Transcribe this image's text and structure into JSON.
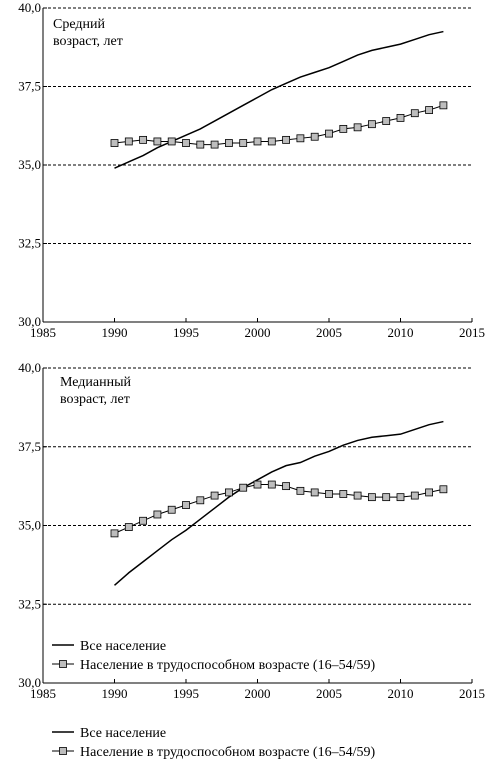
{
  "chart_data": [
    {
      "type": "line",
      "title": "Средний\nвозраст, лет",
      "xlim": [
        1985,
        2015
      ],
      "ylim": [
        30.0,
        40.0
      ],
      "x_ticks": [
        "1985",
        "1990",
        "1995",
        "2000",
        "2005",
        "2010",
        "2015"
      ],
      "y_ticks": [
        "30,0",
        "32,5",
        "35,0",
        "37,5",
        "40,0"
      ],
      "grid": "horizontal-dashed",
      "series": [
        {
          "x": [
            1990,
            1991,
            1992,
            1993,
            1994,
            1995,
            1996,
            1997,
            1998,
            1999,
            2000,
            2001,
            2002,
            2003,
            2004,
            2005,
            2006,
            2007,
            2008,
            2009,
            2010,
            2011,
            2012,
            2013
          ],
          "values": [
            34.9,
            35.1,
            35.3,
            35.55,
            35.75,
            35.95,
            36.15,
            36.4,
            36.65,
            36.9,
            37.15,
            37.4,
            37.6,
            37.8,
            37.95,
            38.1,
            38.3,
            38.5,
            38.65,
            38.75,
            38.85,
            39.0,
            39.15,
            39.25
          ]
        },
        {
          "x": [
            1990,
            1991,
            1992,
            1993,
            1994,
            1995,
            1996,
            1997,
            1998,
            1999,
            2000,
            2001,
            2002,
            2003,
            2004,
            2005,
            2006,
            2007,
            2008,
            2009,
            2010,
            2011,
            2012,
            2013
          ],
          "values": [
            35.7,
            35.75,
            35.8,
            35.75,
            35.75,
            35.7,
            35.65,
            35.65,
            35.7,
            35.7,
            35.75,
            35.75,
            35.8,
            35.85,
            35.9,
            36.0,
            36.15,
            36.2,
            36.3,
            36.4,
            36.5,
            36.65,
            36.75,
            36.9
          ]
        }
      ]
    },
    {
      "type": "line",
      "title": "Медианный\nвозраст, лет",
      "xlim": [
        1985,
        2015
      ],
      "ylim": [
        30.0,
        40.0
      ],
      "x_ticks": [
        "1985",
        "1990",
        "1995",
        "2000",
        "2005",
        "2010",
        "2015"
      ],
      "y_ticks": [
        "30,0",
        "32,5",
        "35,0",
        "37,5",
        "40,0"
      ],
      "grid": "horizontal-dashed",
      "legend_position": "bottom-left, inside plot",
      "series": [
        {
          "name": "Все население",
          "x": [
            1990,
            1991,
            1992,
            1993,
            1994,
            1995,
            1996,
            1997,
            1998,
            1999,
            2000,
            2001,
            2002,
            2003,
            2004,
            2005,
            2006,
            2007,
            2008,
            2009,
            2010,
            2011,
            2012,
            2013
          ],
          "values": [
            33.1,
            33.5,
            33.85,
            34.2,
            34.55,
            34.85,
            35.2,
            35.55,
            35.9,
            36.2,
            36.45,
            36.7,
            36.9,
            37.0,
            37.2,
            37.35,
            37.55,
            37.7,
            37.8,
            37.85,
            37.9,
            38.05,
            38.2,
            38.3
          ]
        },
        {
          "name": "Население в трудоспособном возрасте (16–54/59)",
          "x": [
            1990,
            1991,
            1992,
            1993,
            1994,
            1995,
            1996,
            1997,
            1998,
            1999,
            2000,
            2001,
            2002,
            2003,
            2004,
            2005,
            2006,
            2007,
            2008,
            2009,
            2010,
            2011,
            2012,
            2013
          ],
          "values": [
            34.75,
            34.95,
            35.15,
            35.35,
            35.5,
            35.65,
            35.8,
            35.95,
            36.05,
            36.2,
            36.3,
            36.3,
            36.25,
            36.1,
            36.05,
            36.0,
            36.0,
            35.95,
            35.9,
            35.9,
            35.9,
            35.95,
            36.05,
            36.15
          ]
        }
      ]
    }
  ],
  "bottom_legend": {
    "items": [
      "Все население",
      "Население в трудоспособном возрасте (16–54/59)"
    ]
  }
}
